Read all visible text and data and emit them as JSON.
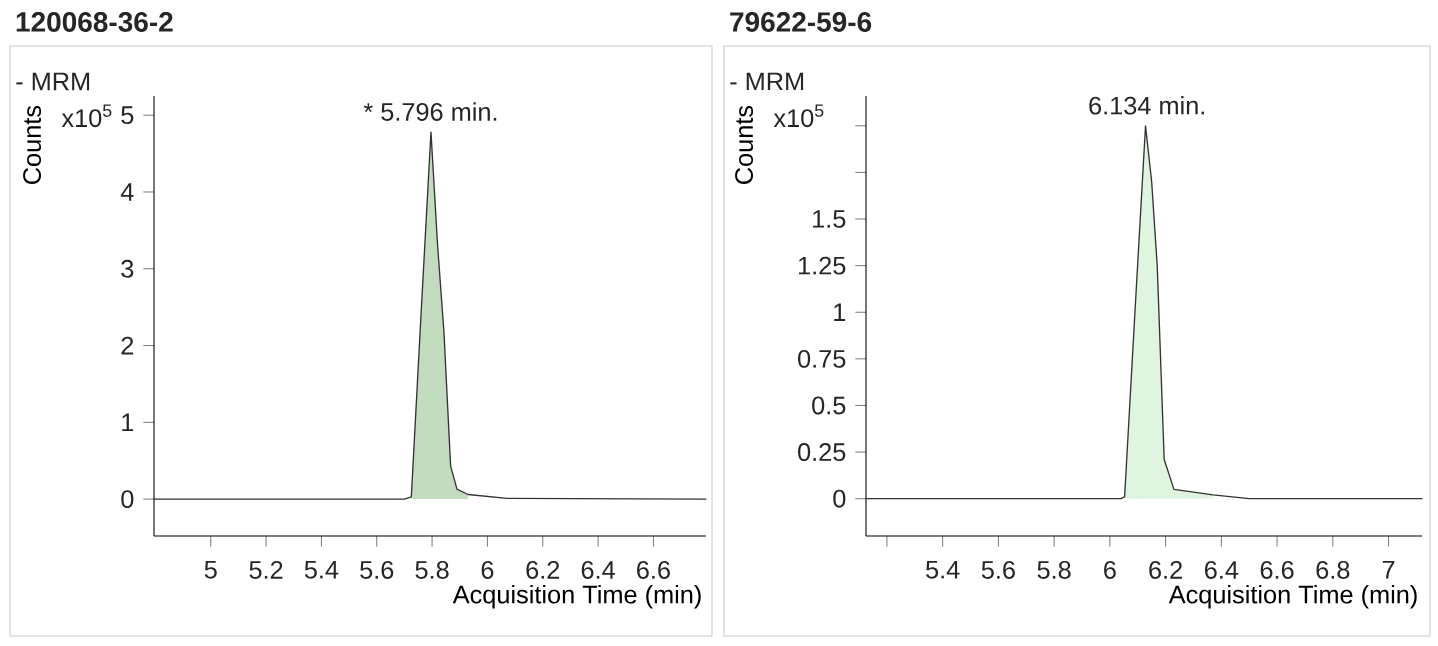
{
  "chart_data": [
    {
      "type": "line",
      "title": "120068-36-2",
      "xlabel": "Acquisition Time (min)",
      "ylabel": "Counts",
      "annotations": [
        "- MRM",
        "x10$^{5}$",
        {
          "text": "* 5.796 min.",
          "x": 5.796,
          "y": 4.78
        }
      ],
      "xlim": [
        4.795,
        6.79
      ],
      "ylim": [
        -0.48,
        5.25
      ],
      "xticks": [
        5,
        5.2,
        5.4,
        5.6,
        5.8,
        6,
        6.2,
        6.4,
        6.6
      ],
      "yticks": [
        0,
        1,
        2,
        3,
        4,
        5
      ],
      "series": [
        {
          "type": "area",
          "color": "#c3dbbf",
          "x": [
            5.725,
            5.76,
            5.796,
            5.82,
            5.843,
            5.867,
            5.89,
            5.93
          ],
          "values": [
            0.03,
            2.4,
            4.78,
            3.3,
            2.17,
            0.43,
            0.13,
            0.06
          ]
        },
        {
          "color": "#333333",
          "x": [
            4.795,
            5.7,
            5.725,
            5.76,
            5.796,
            5.82,
            5.843,
            5.867,
            5.89,
            5.93,
            6.07,
            6.79
          ],
          "values": [
            0,
            0,
            0.03,
            2.4,
            4.78,
            3.3,
            2.17,
            0.43,
            0.13,
            0.06,
            0.01,
            0
          ]
        }
      ]
    },
    {
      "type": "line",
      "title": "79622-59-6",
      "xlabel": "Acquisition Time (min)",
      "ylabel": "Counts",
      "annotations": [
        "- MRM",
        "x10$^{5}$",
        {
          "text": "6.134 min.",
          "x": 6.134,
          "y": 2.0
        }
      ],
      "xlim": [
        5.125,
        7.12
      ],
      "ylim": [
        -0.2,
        2.16
      ],
      "xticks": [
        {
          "value": 5.2,
          "label": null
        },
        5.4,
        5.6,
        5.8,
        6,
        6.2,
        6.4,
        6.6,
        6.8,
        7
      ],
      "yticks": [
        0,
        0.25,
        0.5,
        0.75,
        1,
        1.25,
        1.5,
        {
          "value": 1.75,
          "label": null
        },
        {
          "value": 2,
          "label": null
        }
      ],
      "series": [
        {
          "type": "area",
          "color": "#dff5df",
          "x": [
            6.053,
            6.09,
            6.128,
            6.15,
            6.17,
            6.195,
            6.23,
            6.37
          ],
          "values": [
            0.01,
            1.0,
            2.0,
            1.7,
            1.25,
            0.21,
            0.05,
            0.02
          ]
        },
        {
          "color": "#333333",
          "x": [
            5.125,
            6.04,
            6.053,
            6.09,
            6.128,
            6.15,
            6.17,
            6.195,
            6.23,
            6.37,
            6.5,
            7.12
          ],
          "values": [
            0,
            0,
            0.01,
            1.0,
            2.0,
            1.7,
            1.25,
            0.21,
            0.05,
            0.02,
            0,
            0
          ]
        }
      ]
    }
  ]
}
